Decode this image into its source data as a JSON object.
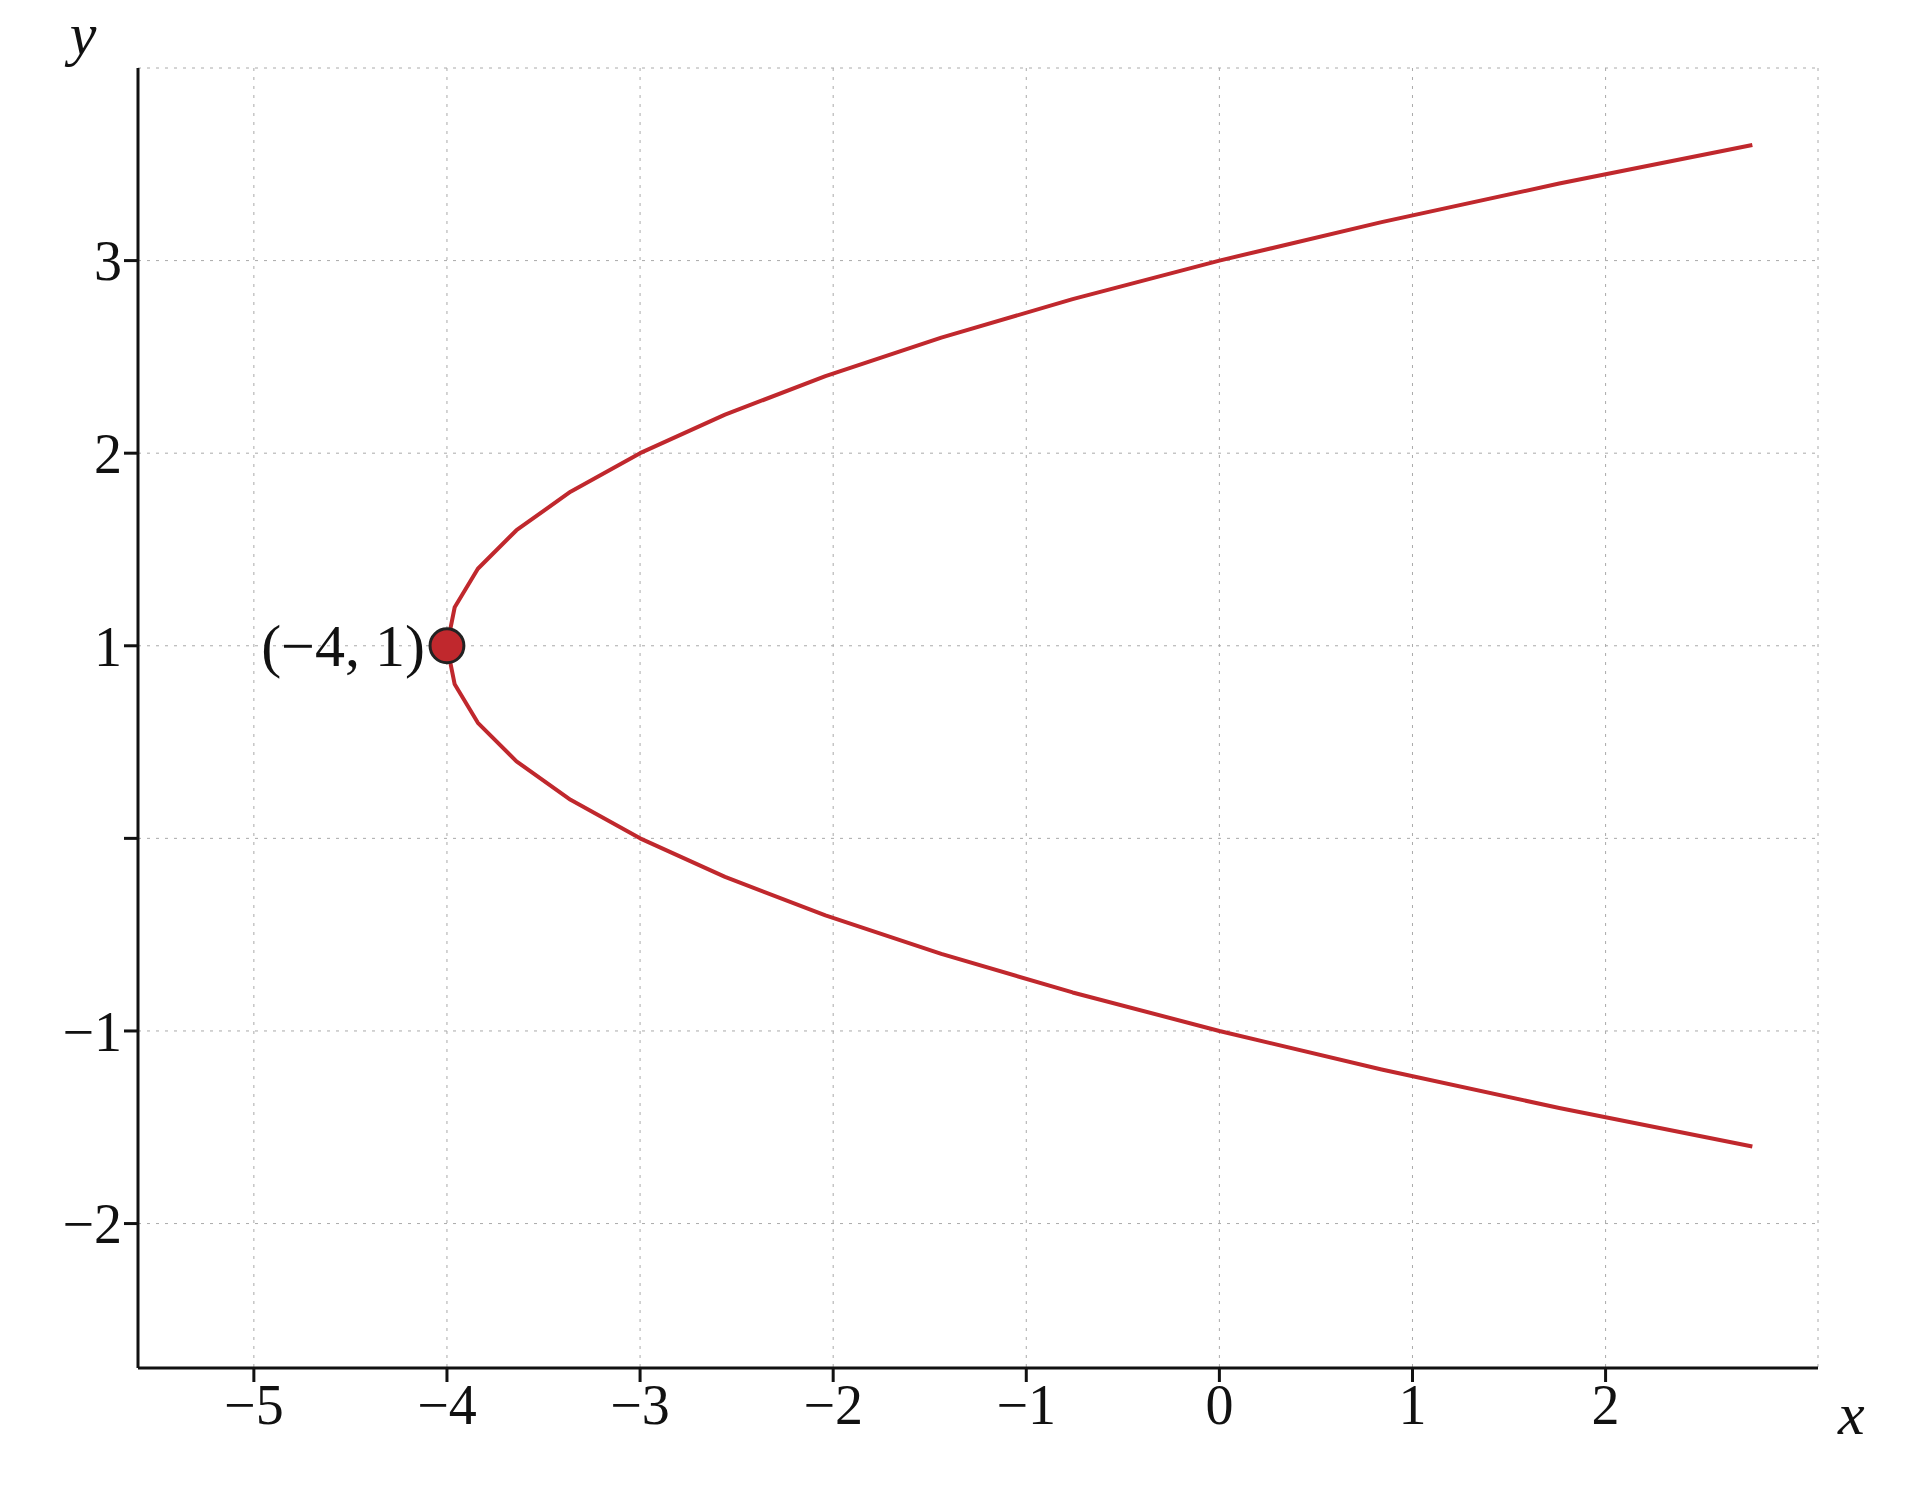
{
  "chart_data": {
    "type": "line",
    "xlabel": "x",
    "ylabel": "y",
    "xlim": [
      -5.6,
      3.1
    ],
    "ylim": [
      -2.75,
      4
    ],
    "xticks": [
      -5,
      -4,
      -3,
      -2,
      -1,
      0,
      1,
      2
    ],
    "yticks": [
      -2,
      -1,
      {
        "value": 0,
        "label": null
      },
      1,
      2,
      3
    ],
    "grid": true,
    "series": [
      {
        "color": "#c0282d",
        "marker": "none",
        "x": [
          2.76,
          1.76,
          0.84,
          0,
          -0.76,
          -1.44,
          -2.04,
          -2.56,
          -3,
          -3.36,
          -3.64,
          -3.84,
          -3.96,
          -4,
          -3.96,
          -3.84,
          -3.64,
          -3.36,
          -3,
          -2.56,
          -2.04,
          -1.44,
          -0.76,
          0,
          0.84,
          1.76,
          2.76
        ],
        "values": [
          -1.6,
          -1.4,
          -1.2,
          -1,
          -0.8,
          -0.6,
          -0.4,
          -0.2,
          0,
          0.2,
          0.4,
          0.6,
          0.8,
          1,
          1.2,
          1.4,
          1.6,
          1.8,
          2,
          2.2,
          2.4,
          2.6,
          2.8,
          3,
          3.2,
          3.4,
          3.6
        ]
      },
      {
        "type": "scatter",
        "color": "#c0282d",
        "marker": "circle",
        "x": [
          -4
        ],
        "values": [
          1
        ]
      }
    ],
    "annotations": [
      {
        "text": "(−4, 1)",
        "x": -4,
        "y": 1
      }
    ]
  }
}
